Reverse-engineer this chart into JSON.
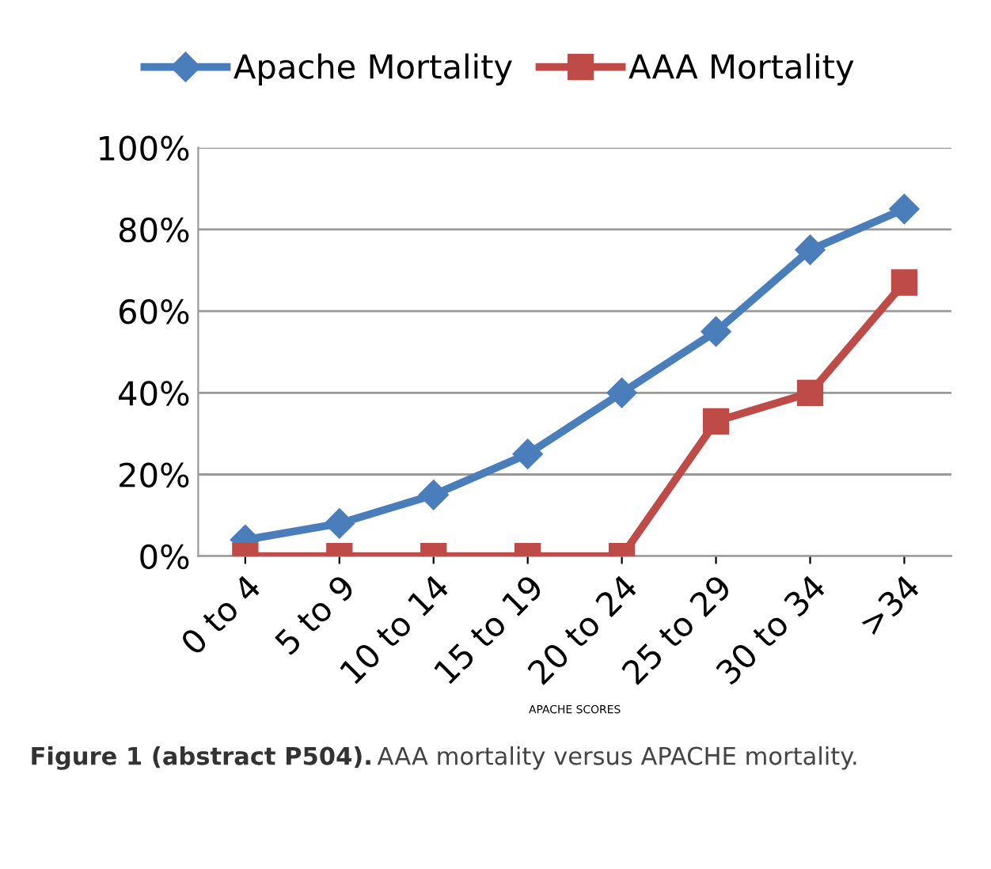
{
  "chart_data": {
    "type": "line",
    "categories": [
      "0 to 4",
      "5 to 9",
      "10 to 14",
      "15 to 19",
      "20 to 24",
      "25 to 29",
      "30 to 34",
      ">34"
    ],
    "series": [
      {
        "name": "Apache Mortality",
        "color": "#4a7ebb",
        "marker": "diamond",
        "values": [
          4,
          8,
          15,
          25,
          40,
          55,
          75,
          85
        ]
      },
      {
        "name": "AAA Mortality",
        "color": "#be4b48",
        "marker": "square",
        "values": [
          0,
          0,
          0,
          0,
          0,
          33,
          40,
          67
        ]
      }
    ],
    "xlabel": "APACHE SCORES",
    "ylim": [
      0,
      100
    ],
    "yticks": [
      {
        "value": 0,
        "label": "0%"
      },
      {
        "value": 20,
        "label": "20%"
      },
      {
        "value": 40,
        "label": "40%"
      },
      {
        "value": 60,
        "label": "60%"
      },
      {
        "value": 80,
        "label": "80%"
      },
      {
        "value": 100,
        "label": "100%"
      }
    ],
    "grid": "y",
    "legend": "top",
    "line_style": "solid",
    "annotations": [
      "Figure 1 (abstract P504).",
      "AAA mortality versus APACHE mortality."
    ]
  }
}
